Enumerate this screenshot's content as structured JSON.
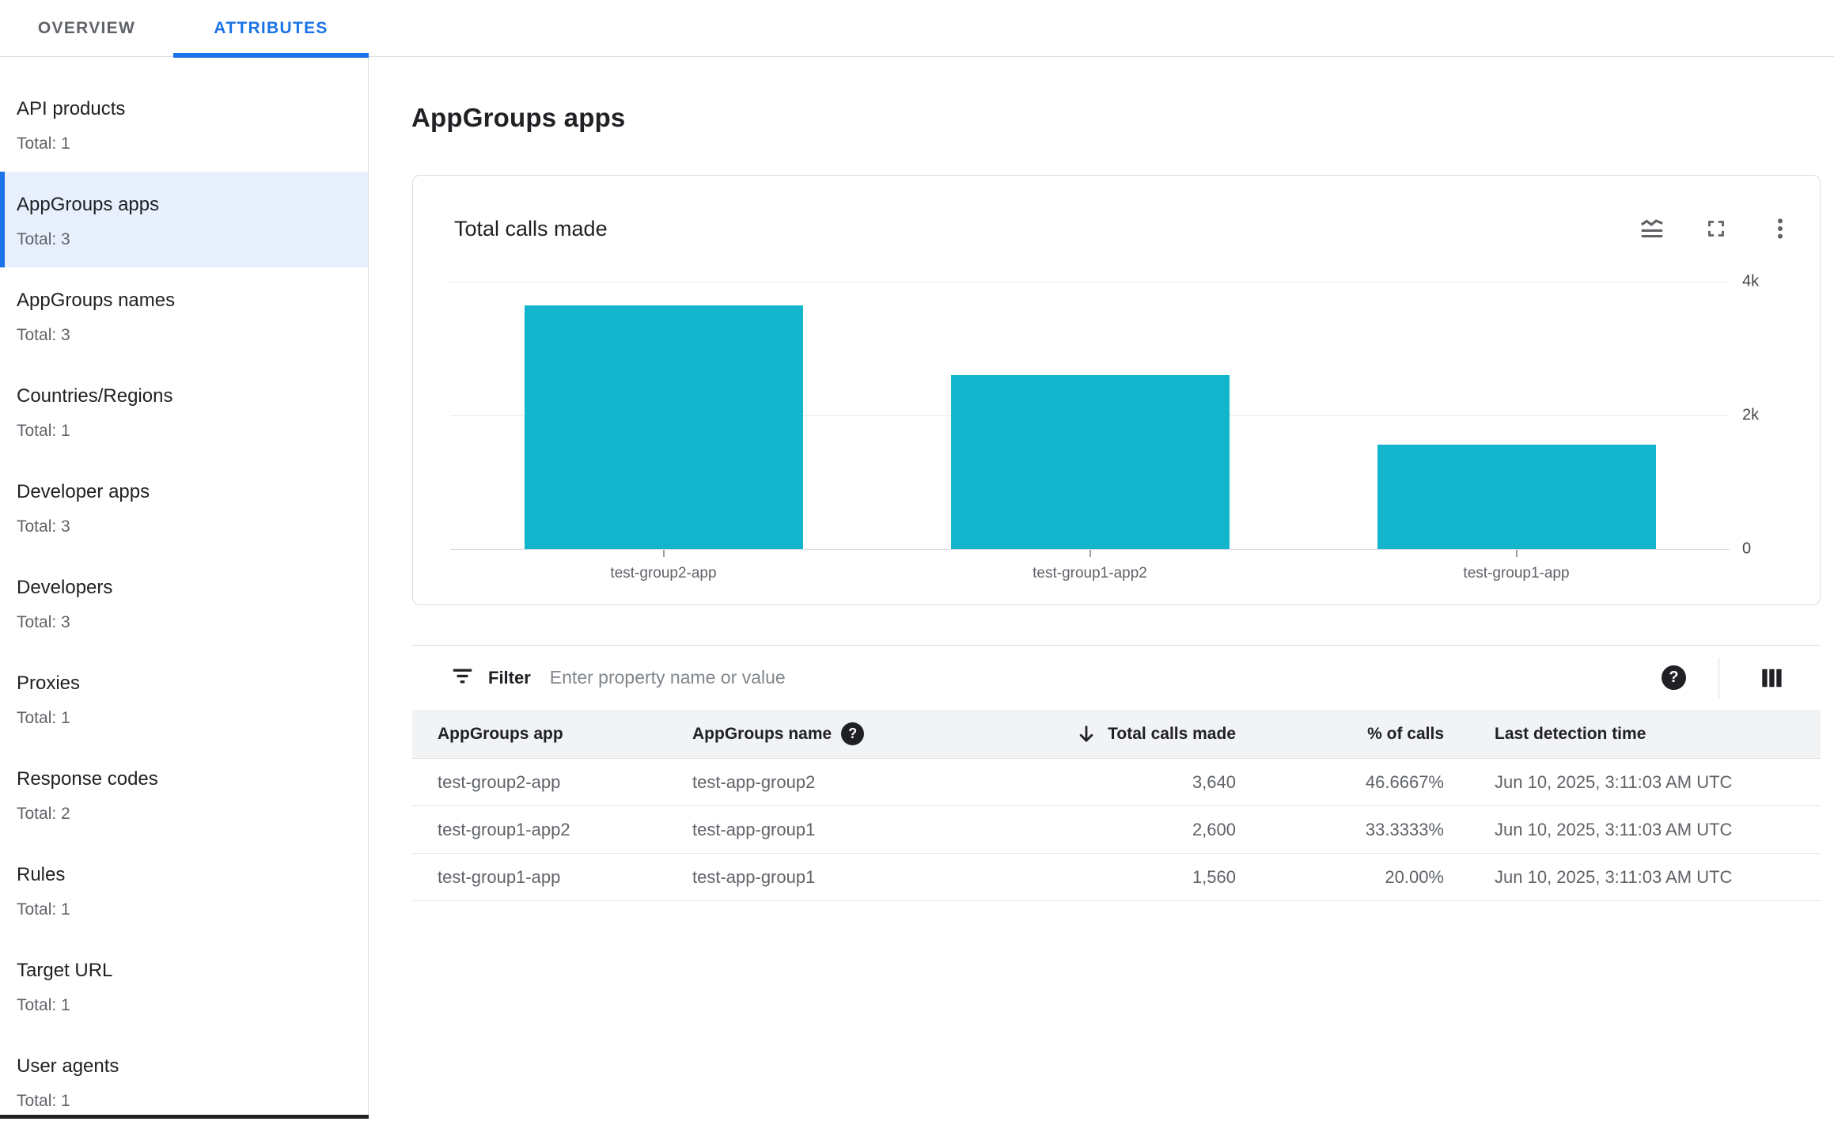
{
  "tabs": {
    "overview": "OVERVIEW",
    "attributes": "ATTRIBUTES"
  },
  "sidebar": {
    "items": [
      {
        "label": "API products",
        "total": "Total: 1"
      },
      {
        "label": "AppGroups apps",
        "total": "Total: 3",
        "selected": true
      },
      {
        "label": "AppGroups names",
        "total": "Total: 3"
      },
      {
        "label": "Countries/Regions",
        "total": "Total: 1"
      },
      {
        "label": "Developer apps",
        "total": "Total: 3"
      },
      {
        "label": "Developers",
        "total": "Total: 3"
      },
      {
        "label": "Proxies",
        "total": "Total: 1"
      },
      {
        "label": "Response codes",
        "total": "Total: 2"
      },
      {
        "label": "Rules",
        "total": "Total: 1"
      },
      {
        "label": "Target URL",
        "total": "Total: 1"
      },
      {
        "label": "User agents",
        "total": "Total: 1"
      }
    ]
  },
  "main": {
    "title": "AppGroups apps"
  },
  "chart_card": {
    "title": "Total calls made",
    "icons": [
      "chart-type-icon",
      "fullscreen-icon",
      "more-vert-icon"
    ]
  },
  "chart_data": {
    "type": "bar",
    "categories": [
      "test-group2-app",
      "test-group1-app2",
      "test-group1-app"
    ],
    "values": [
      3640,
      2600,
      1560
    ],
    "title": "Total calls made",
    "xlabel": "",
    "ylabel": "",
    "ylim": [
      0,
      4000
    ],
    "yticks": [
      0,
      2000,
      4000
    ],
    "ytick_labels": [
      "0",
      "2k",
      "4k"
    ],
    "bar_color": "#12B5CB",
    "grid": "horizontal",
    "legend": "none"
  },
  "filter": {
    "label": "Filter",
    "placeholder": "Enter property name or value"
  },
  "table": {
    "columns": [
      {
        "label": "AppGroups app"
      },
      {
        "label": "AppGroups name",
        "help": true
      },
      {
        "label": "Total calls made",
        "sort": "desc"
      },
      {
        "label": "% of calls"
      },
      {
        "label": "Last detection time"
      }
    ],
    "rows": [
      {
        "app": "test-group2-app",
        "name": "test-app-group2",
        "calls": "3,640",
        "pct": "46.6667%",
        "time": "Jun 10, 2025, 3:11:03 AM UTC"
      },
      {
        "app": "test-group1-app2",
        "name": "test-app-group1",
        "calls": "2,600",
        "pct": "33.3333%",
        "time": "Jun 10, 2025, 3:11:03 AM UTC"
      },
      {
        "app": "test-group1-app",
        "name": "test-app-group1",
        "calls": "1,560",
        "pct": "20.00%",
        "time": "Jun 10, 2025, 3:11:03 AM UTC"
      }
    ]
  },
  "colors": {
    "accent": "#1A73E8",
    "bar": "#12B5CB",
    "selected_bg": "#E8F0FE",
    "text_primary": "#202124",
    "text_secondary": "#5F6368",
    "border": "#DADCE0"
  }
}
